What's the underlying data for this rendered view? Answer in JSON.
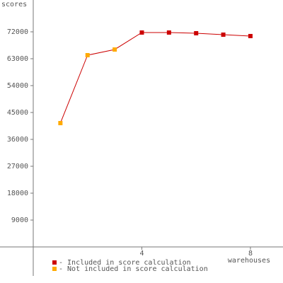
{
  "chart_data": {
    "type": "line",
    "x_label": "warehouses",
    "y_label": "scores",
    "x": [
      1,
      2,
      3,
      4,
      5,
      6,
      7,
      8
    ],
    "series": [
      {
        "name": "- Included in score calculation",
        "color": "#cc0000",
        "values": [
          null,
          null,
          null,
          71760,
          71760,
          71530,
          71050,
          70580
        ]
      },
      {
        "name": "- Not included in score calculation",
        "color": "#ffaa00",
        "values": [
          41450,
          64180,
          66080,
          null,
          null,
          null,
          null,
          null
        ]
      }
    ],
    "line_color": "#cc0000",
    "xlim": [
      0,
      9.2
    ],
    "ylim": [
      -9700,
      82650
    ],
    "xticks": [
      4,
      8
    ],
    "yticks": [
      9000,
      18000,
      27000,
      36000,
      45000,
      54000,
      63000,
      72000
    ],
    "grid": false
  }
}
